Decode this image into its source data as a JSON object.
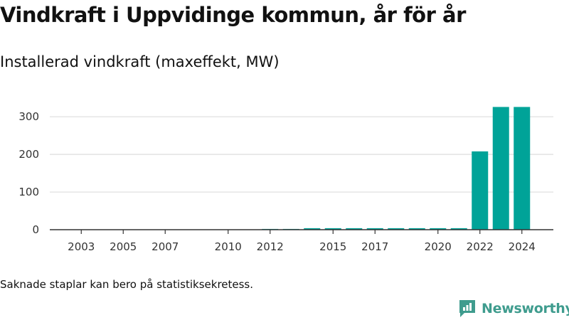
{
  "title": "Vindkraft i Uppvidinge kommun, år för år",
  "subtitle": "Installerad vindkraft (maxeffekt, MW)",
  "note": "Saknade staplar kan bero på statistiksekretess.",
  "brand": {
    "name": "Newsworthy",
    "icon": "newsworthy-logo-icon",
    "color": "#3f9c8e"
  },
  "chart_data": {
    "type": "bar",
    "x": [
      2012,
      2013,
      2014,
      2015,
      2016,
      2017,
      2018,
      2019,
      2020,
      2021,
      2022,
      2023,
      2024
    ],
    "values": [
      2,
      2,
      4,
      4,
      4,
      4,
      4,
      4,
      4,
      4,
      208,
      326,
      326
    ],
    "xticks": [
      2003,
      2005,
      2007,
      2010,
      2012,
      2015,
      2017,
      2020,
      2022,
      2024
    ],
    "yticks": [
      0,
      100,
      200,
      300
    ],
    "xlim": [
      2001.5,
      2025.5
    ],
    "ylim": [
      0,
      340
    ],
    "bar_color": "#00a398",
    "grid": "horizontal"
  }
}
